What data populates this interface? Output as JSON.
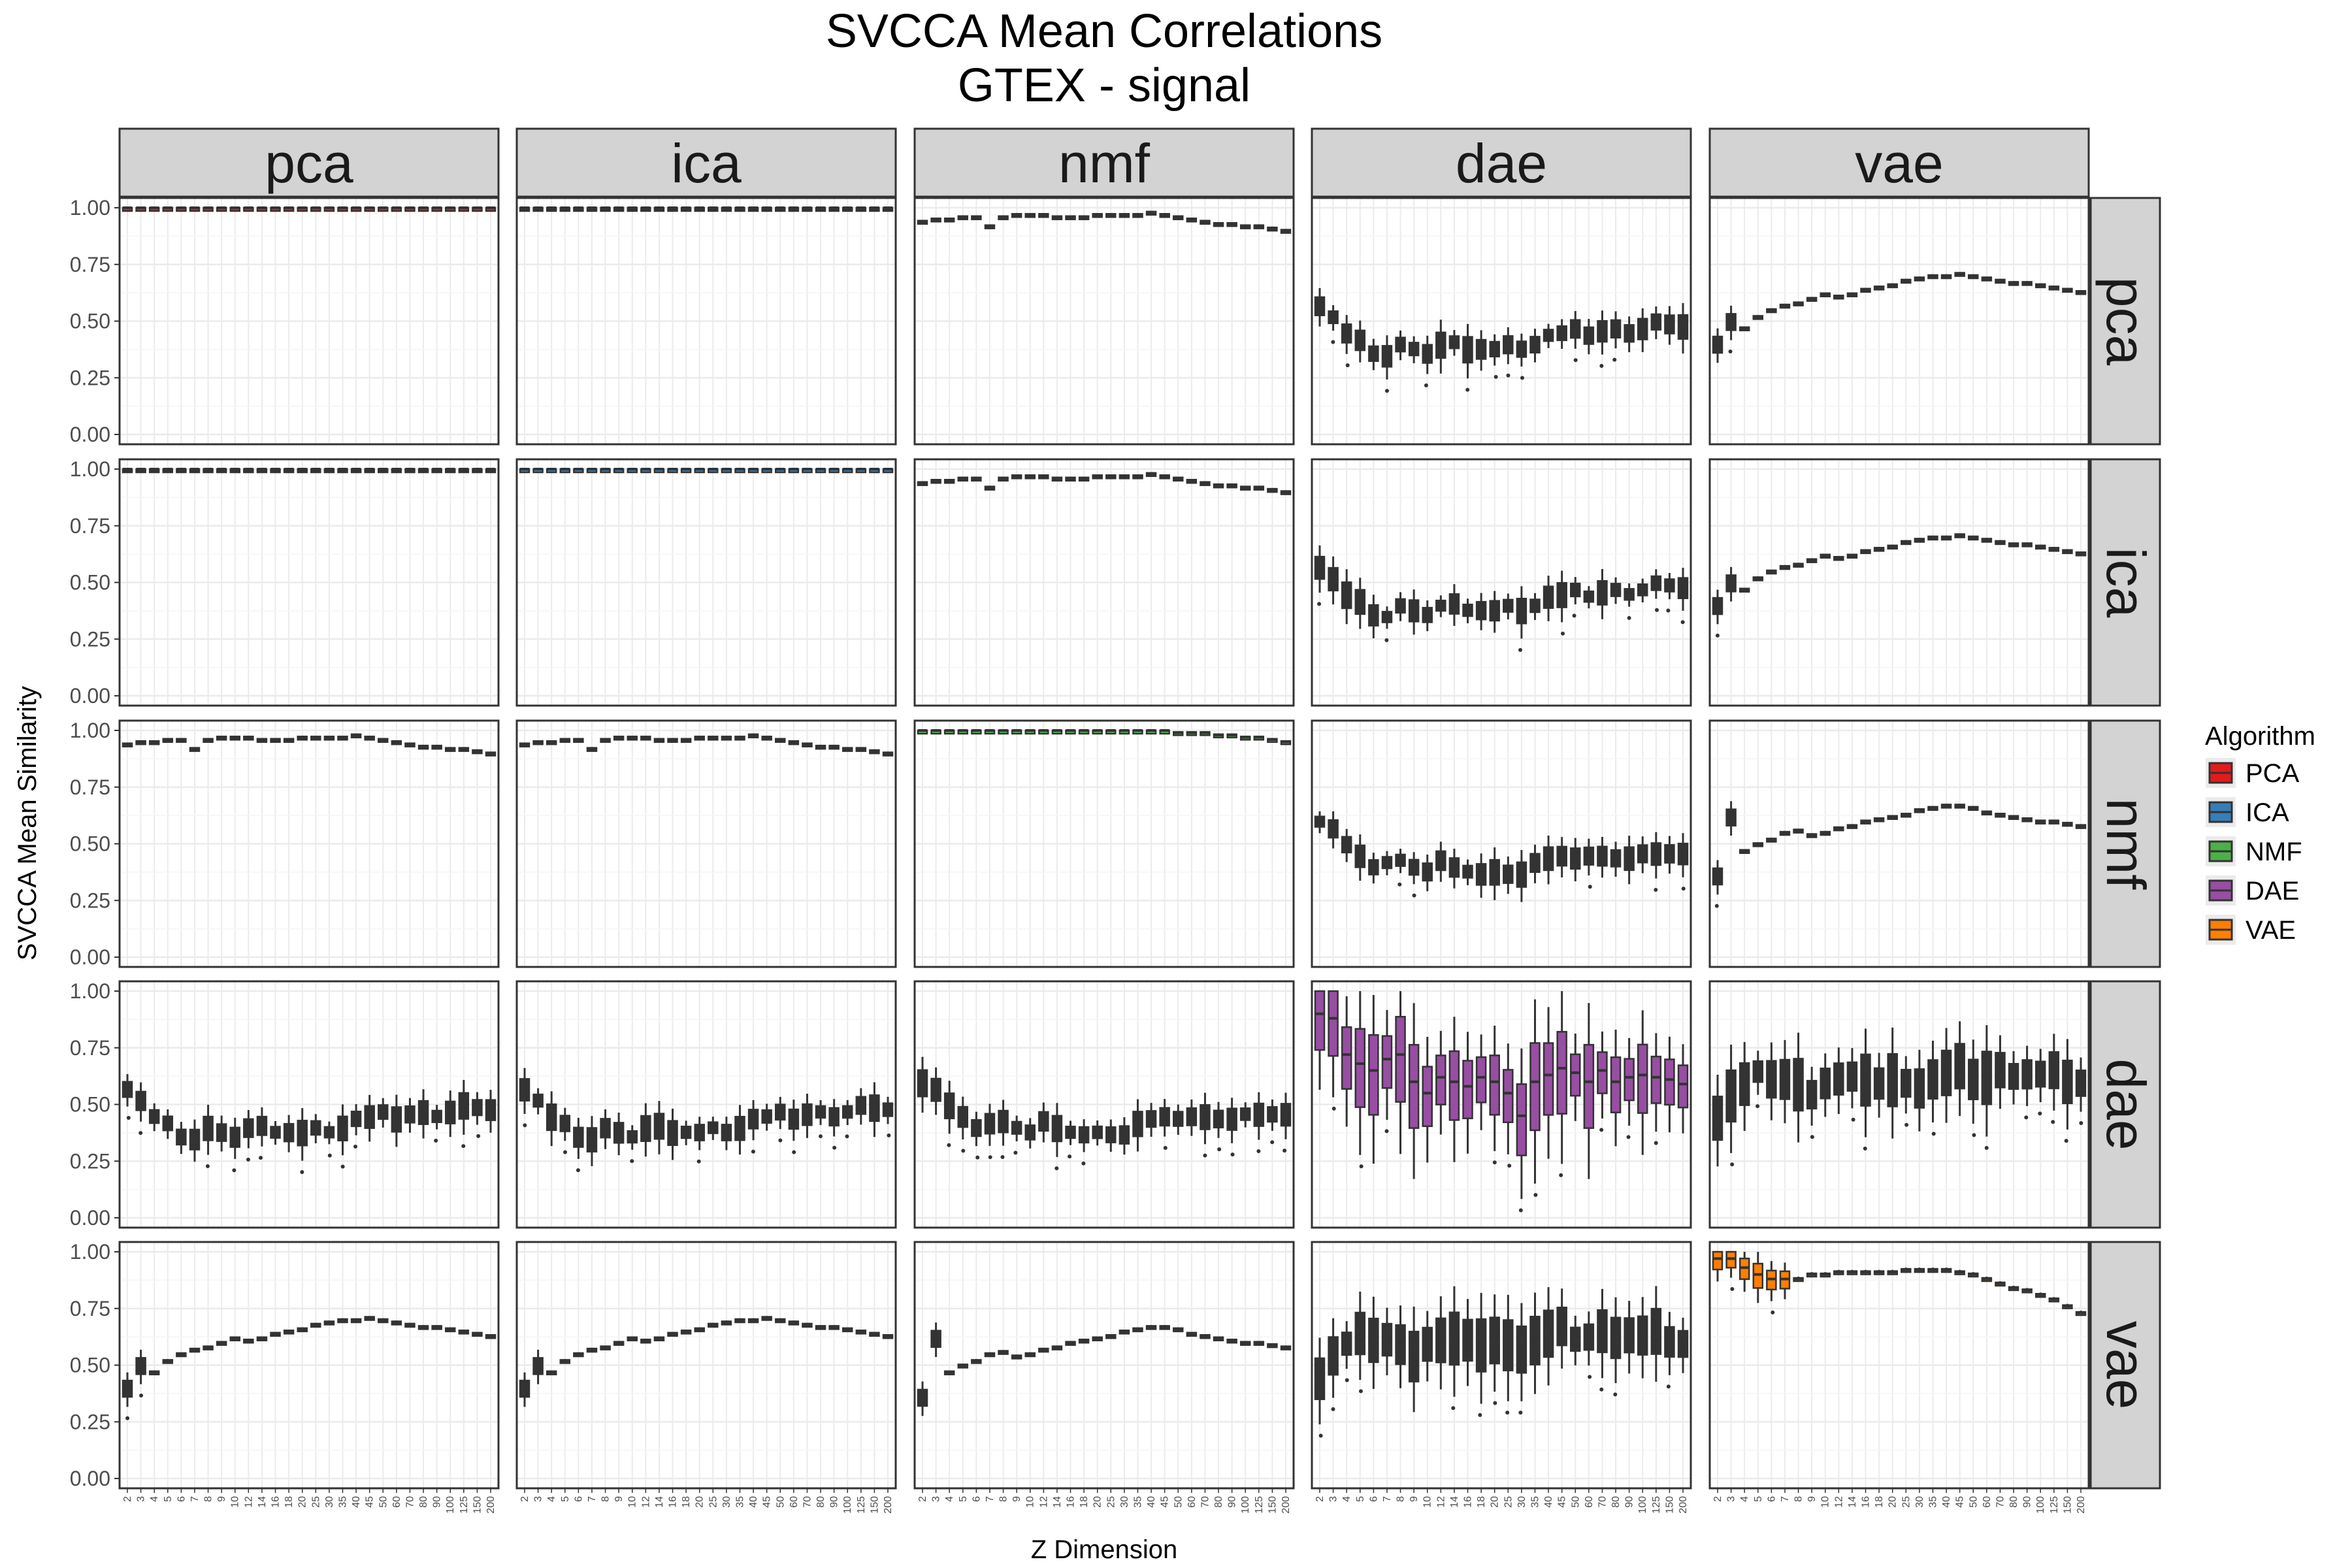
{
  "chart_data": {
    "type": "boxplot",
    "title": "SVCCA Mean Correlations",
    "subtitle": "GTEX - signal",
    "xlabel": "Z Dimension",
    "ylabel": "SVCCA Mean Similarity",
    "ylim": [
      0,
      1
    ],
    "y_ticks": [
      "0.00",
      "0.25",
      "0.50",
      "0.75",
      "1.00"
    ],
    "y_tick_values": [
      0,
      0.25,
      0.5,
      0.75,
      1.0
    ],
    "categories": [
      "2",
      "3",
      "4",
      "5",
      "6",
      "7",
      "8",
      "9",
      "10",
      "12",
      "14",
      "16",
      "18",
      "20",
      "25",
      "30",
      "35",
      "40",
      "45",
      "50",
      "60",
      "70",
      "80",
      "90",
      "100",
      "125",
      "150",
      "200"
    ],
    "column_facets": [
      "pca",
      "ica",
      "nmf",
      "dae",
      "vae"
    ],
    "row_facets": [
      "pca",
      "ica",
      "nmf",
      "dae",
      "vae"
    ],
    "legend": {
      "title": "Algorithm",
      "items": [
        {
          "label": "PCA",
          "color": "#e41a1c"
        },
        {
          "label": "ICA",
          "color": "#377eb8"
        },
        {
          "label": "NMF",
          "color": "#4daf4a"
        },
        {
          "label": "DAE",
          "color": "#984ea3"
        },
        {
          "label": "VAE",
          "color": "#ff7f00"
        }
      ]
    },
    "pair_medians": {
      "pca-pca": [
        1,
        1,
        1,
        1,
        1,
        1,
        1,
        1,
        1,
        1,
        1,
        1,
        1,
        1,
        1,
        1,
        1,
        1,
        1,
        1,
        1,
        1,
        1,
        1,
        1,
        1,
        1,
        1
      ],
      "pca-ica": [
        1,
        1,
        1,
        1,
        1,
        1,
        1,
        1,
        1,
        1,
        1,
        1,
        1,
        1,
        1,
        1,
        1,
        1,
        1,
        1,
        1,
        1,
        1,
        1,
        1,
        1,
        1,
        1
      ],
      "ica-ica": [
        1,
        1,
        1,
        1,
        1,
        1,
        1,
        1,
        1,
        1,
        1,
        1,
        1,
        1,
        1,
        1,
        1,
        1,
        1,
        1,
        1,
        1,
        1,
        1,
        1,
        1,
        1,
        1
      ],
      "pca-nmf": [
        0.94,
        0.95,
        0.95,
        0.96,
        0.96,
        0.92,
        0.96,
        0.97,
        0.97,
        0.97,
        0.96,
        0.96,
        0.96,
        0.97,
        0.97,
        0.97,
        0.97,
        0.98,
        0.97,
        0.96,
        0.95,
        0.94,
        0.93,
        0.93,
        0.92,
        0.92,
        0.91,
        0.9
      ],
      "ica-nmf": [
        0.94,
        0.95,
        0.95,
        0.96,
        0.96,
        0.92,
        0.96,
        0.97,
        0.97,
        0.97,
        0.96,
        0.96,
        0.96,
        0.97,
        0.97,
        0.97,
        0.97,
        0.98,
        0.97,
        0.96,
        0.95,
        0.94,
        0.93,
        0.93,
        0.92,
        0.92,
        0.91,
        0.9
      ],
      "nmf-nmf": [
        1,
        1,
        1,
        1,
        1,
        1,
        1,
        1,
        1,
        1,
        1,
        1,
        1,
        1,
        1,
        1,
        1,
        1,
        1,
        0.99,
        0.99,
        0.99,
        0.98,
        0.98,
        0.97,
        0.97,
        0.96,
        0.95
      ],
      "pca-dae": [
        0.57,
        0.52,
        0.45,
        0.42,
        0.36,
        0.35,
        0.4,
        0.38,
        0.36,
        0.4,
        0.41,
        0.38,
        0.38,
        0.38,
        0.4,
        0.38,
        0.4,
        0.44,
        0.45,
        0.47,
        0.44,
        0.46,
        0.47,
        0.45,
        0.47,
        0.5,
        0.49,
        0.48
      ],
      "ica-dae": [
        0.57,
        0.52,
        0.45,
        0.42,
        0.36,
        0.35,
        0.4,
        0.38,
        0.36,
        0.4,
        0.41,
        0.38,
        0.38,
        0.38,
        0.4,
        0.38,
        0.4,
        0.44,
        0.45,
        0.47,
        0.44,
        0.46,
        0.47,
        0.45,
        0.47,
        0.5,
        0.49,
        0.48
      ],
      "nmf-dae": [
        0.6,
        0.57,
        0.5,
        0.45,
        0.4,
        0.42,
        0.43,
        0.4,
        0.38,
        0.43,
        0.4,
        0.38,
        0.37,
        0.38,
        0.37,
        0.37,
        0.42,
        0.44,
        0.45,
        0.44,
        0.45,
        0.45,
        0.44,
        0.44,
        0.46,
        0.46,
        0.46,
        0.46
      ],
      "dae-dae": [
        0.9,
        0.88,
        0.72,
        0.68,
        0.65,
        0.7,
        0.72,
        0.6,
        0.55,
        0.62,
        0.6,
        0.58,
        0.62,
        0.6,
        0.55,
        0.45,
        0.6,
        0.63,
        0.66,
        0.64,
        0.6,
        0.65,
        0.6,
        0.62,
        0.63,
        0.62,
        0.61,
        0.59
      ],
      "pca-vae": [
        0.4,
        0.5,
        0.47,
        0.52,
        0.55,
        0.57,
        0.58,
        0.6,
        0.62,
        0.61,
        0.62,
        0.64,
        0.65,
        0.66,
        0.68,
        0.69,
        0.7,
        0.7,
        0.71,
        0.7,
        0.69,
        0.68,
        0.67,
        0.67,
        0.66,
        0.65,
        0.64,
        0.63
      ],
      "ica-vae": [
        0.4,
        0.5,
        0.47,
        0.52,
        0.55,
        0.57,
        0.58,
        0.6,
        0.62,
        0.61,
        0.62,
        0.64,
        0.65,
        0.66,
        0.68,
        0.69,
        0.7,
        0.7,
        0.71,
        0.7,
        0.69,
        0.68,
        0.67,
        0.67,
        0.66,
        0.65,
        0.64,
        0.63
      ],
      "nmf-vae": [
        0.36,
        0.62,
        0.47,
        0.5,
        0.52,
        0.55,
        0.56,
        0.54,
        0.55,
        0.57,
        0.58,
        0.6,
        0.61,
        0.62,
        0.63,
        0.65,
        0.66,
        0.67,
        0.67,
        0.66,
        0.64,
        0.63,
        0.62,
        0.61,
        0.6,
        0.6,
        0.59,
        0.58
      ],
      "dae-vae": [
        0.45,
        0.55,
        0.6,
        0.65,
        0.62,
        0.62,
        0.6,
        0.55,
        0.6,
        0.62,
        0.63,
        0.62,
        0.6,
        0.62,
        0.6,
        0.58,
        0.62,
        0.65,
        0.68,
        0.62,
        0.63,
        0.66,
        0.63,
        0.64,
        0.64,
        0.66,
        0.61,
        0.6
      ],
      "vae-vae": [
        0.97,
        0.97,
        0.93,
        0.9,
        0.88,
        0.88,
        0.88,
        0.9,
        0.9,
        0.91,
        0.91,
        0.91,
        0.91,
        0.91,
        0.92,
        0.92,
        0.92,
        0.92,
        0.91,
        0.9,
        0.88,
        0.86,
        0.84,
        0.83,
        0.81,
        0.79,
        0.76,
        0.73
      ]
    }
  }
}
